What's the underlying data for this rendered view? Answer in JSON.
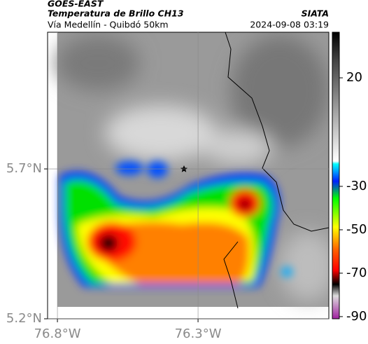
{
  "header": {
    "source": "GOES-EAST",
    "title": "Temperatura de Brillo CH13",
    "agency": "SIATA",
    "subtitle": "Vía Medellín - Quibdó 50km",
    "datetime": "2024-09-08 03:19"
  },
  "map": {
    "xlim": [
      -76.835,
      -75.835
    ],
    "ylim": [
      5.2,
      6.156
    ],
    "xticks": [
      {
        "value": -76.8,
        "label": "76.8°W"
      },
      {
        "value": -76.3,
        "label": "76.3°W"
      }
    ],
    "yticks": [
      {
        "value": 5.7,
        "label": "5.7°N"
      },
      {
        "value": 5.2,
        "label": "5.2°N"
      }
    ],
    "grid": true
  },
  "colorbar": {
    "lim": [
      -91,
      41
    ],
    "ticks": [
      20,
      -30,
      -50,
      -70,
      -90
    ]
  }
}
